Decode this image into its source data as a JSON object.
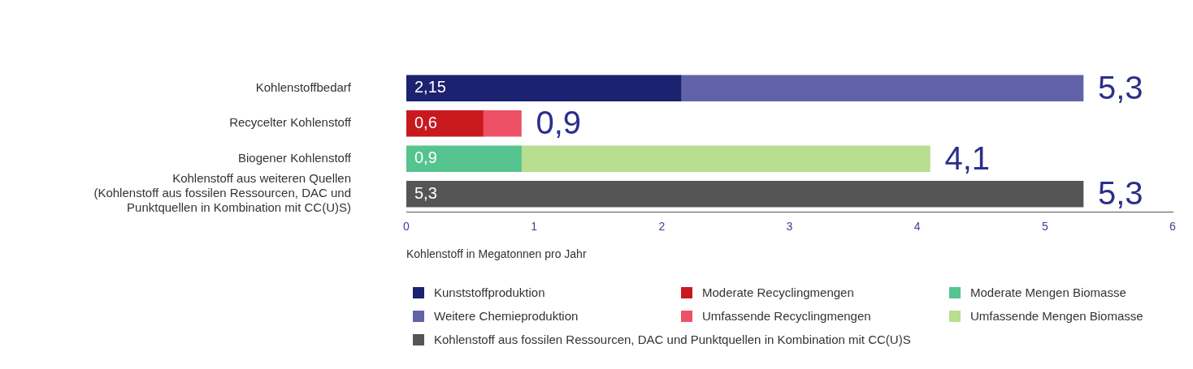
{
  "chart_data": {
    "type": "bar",
    "orientation": "horizontal",
    "stacked": true,
    "categories": [
      "Kohlenstoffbedarf",
      "Recycelter Kohlenstoff",
      "Biogener Kohlenstoff",
      "Kohlenstoff aus weiteren Quellen\n(Kohlenstoff aus fossilen Ressourcen, DAC und\nPunktquellen in Kombination mit CC(U)S)"
    ],
    "series": [
      {
        "name": "Kunststoffproduktion",
        "color": "#1c2170",
        "values": [
          2.15,
          null,
          null,
          null
        ],
        "value_labels": [
          "2,15",
          null,
          null,
          null
        ]
      },
      {
        "name": "Weitere Chemieproduktion",
        "color": "#6163a9",
        "values": [
          3.15,
          null,
          null,
          null
        ]
      },
      {
        "name": "Moderate Recyclingmengen",
        "color": "#c8191f",
        "values": [
          null,
          0.6,
          null,
          null
        ],
        "value_labels": [
          null,
          "0,6",
          null,
          null
        ]
      },
      {
        "name": "Umfassende Recyclingmengen",
        "color": "#ee5166",
        "values": [
          null,
          0.3,
          null,
          null
        ]
      },
      {
        "name": "Moderate Mengen Biomasse",
        "color": "#55c48f",
        "values": [
          null,
          null,
          0.9,
          null
        ],
        "value_labels": [
          null,
          null,
          "0,9",
          null
        ]
      },
      {
        "name": "Umfassende Mengen Biomasse",
        "color": "#b8de8f",
        "values": [
          null,
          null,
          3.2,
          null
        ]
      },
      {
        "name": "Kohlenstoff aus fossilen Ressourcen, DAC und Punktquellen in Kombination mit CC(U)S",
        "color": "#555555",
        "values": [
          null,
          null,
          null,
          5.3
        ],
        "value_labels": [
          null,
          null,
          null,
          "5,3"
        ]
      }
    ],
    "totals": [
      "5,3",
      "0,9",
      "4,1",
      "5,3"
    ],
    "xlabel": "Kohlenstoff in Megatonnen pro Jahr",
    "xlim": [
      0,
      6
    ],
    "xticks": [
      0,
      1,
      2,
      3,
      4,
      5,
      6
    ],
    "grid": false,
    "legend": "bottom"
  }
}
